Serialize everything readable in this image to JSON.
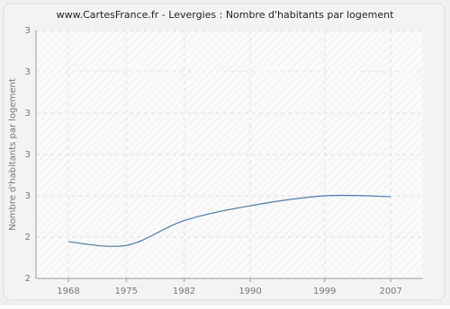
{
  "chart_data": {
    "type": "line",
    "title": "www.CartesFrance.fr - Levergies : Nombre d'habitants par logement",
    "y_label": "Nombre d'habitants par logement",
    "x": [
      1968,
      1975,
      1982,
      1990,
      1999,
      2007
    ],
    "series": [
      {
        "name": "Nombre d'habitants par logement",
        "color": "#4a7aa6",
        "values": [
          2.389,
          2.38,
          2.44,
          2.476,
          2.5,
          2.498
        ]
      }
    ],
    "xlim": [
      1964.08,
      2010.9
    ],
    "xticks": [
      1968,
      1975,
      1982,
      1990,
      1999,
      2007
    ],
    "ylim": [
      2.3,
      2.9
    ],
    "yticks": [
      {
        "value": 2.3,
        "label": "2"
      },
      {
        "value": 2.4,
        "label": "2"
      },
      {
        "value": 2.5,
        "label": "3"
      },
      {
        "value": 2.6,
        "label": "3"
      },
      {
        "value": 2.7,
        "label": "3"
      },
      {
        "value": 2.8,
        "label": "3"
      },
      {
        "value": 2.9,
        "label": "3"
      }
    ],
    "grid": true
  }
}
